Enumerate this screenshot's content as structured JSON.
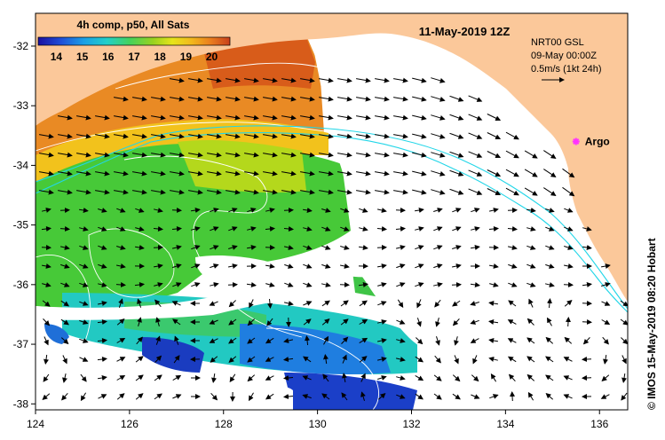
{
  "title": "11-May-2019 12Z",
  "colorbar": {
    "title": "4h comp, p50, All Sats",
    "labels": [
      "14",
      "15",
      "16",
      "17",
      "18",
      "19",
      "20"
    ],
    "min": 13.3,
    "max": 20.7,
    "colors": [
      "#1a0fa0",
      "#1f4fd8",
      "#1aa0e6",
      "#22d0c8",
      "#45d25a",
      "#9ad21e",
      "#e6e41a",
      "#f2b81c",
      "#ea7d1e",
      "#c8401c"
    ]
  },
  "current_legend": {
    "line1": "NRT00 GSL",
    "line2": "09-May 00:00Z",
    "line3": "0.5m/s (1kt 24h)"
  },
  "argo": {
    "label": "Argo",
    "lon": 135.5,
    "lat": -33.6,
    "color": "#ff33ff"
  },
  "credit": "© IMOS 15-May-2019 08:20 Hobart",
  "axes": {
    "x_ticks": [
      "124",
      "126",
      "128",
      "130",
      "132",
      "134",
      "136"
    ],
    "y_ticks": [
      "-32",
      "-33",
      "-34",
      "-35",
      "-36",
      "-37",
      "-38"
    ],
    "lon_range": [
      124,
      136.6
    ],
    "lat_range": [
      -38.1,
      -31.45
    ]
  },
  "colors": {
    "land": "#fbc89a",
    "no_data": "#ffffff",
    "contour": "#ffffff",
    "shelf_contour": "#22d6e8"
  }
}
